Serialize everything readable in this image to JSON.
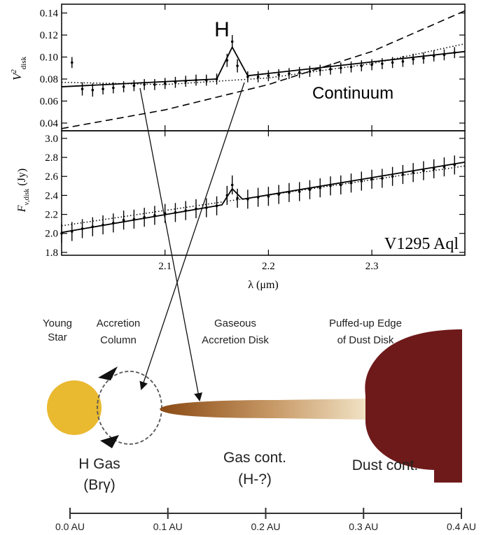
{
  "chart_data": [
    {
      "type": "line",
      "ylabel_main": "V",
      "ylabel_sup": "2",
      "ylabel_sub": "disk",
      "ylim": [
        0.033,
        0.148
      ],
      "xlim": [
        2.0,
        2.39
      ],
      "yticks": [
        "0.04",
        "0.06",
        "0.08",
        "0.10",
        "0.12",
        "0.14"
      ],
      "grid": false,
      "annotations": {
        "line_label": "H",
        "continuum_label": "Continuum"
      },
      "series": [
        {
          "style": "points-errorbars",
          "x": [
            2.01,
            2.02,
            2.03,
            2.04,
            2.05,
            2.06,
            2.07,
            2.08,
            2.09,
            2.1,
            2.11,
            2.12,
            2.13,
            2.14,
            2.15,
            2.16,
            2.165,
            2.17,
            2.18,
            2.19,
            2.2,
            2.21,
            2.22,
            2.23,
            2.24,
            2.25,
            2.26,
            2.27,
            2.28,
            2.29,
            2.3,
            2.31,
            2.32,
            2.33,
            2.34,
            2.35,
            2.36,
            2.37,
            2.38
          ],
          "y": [
            0.095,
            0.071,
            0.07,
            0.071,
            0.072,
            0.073,
            0.074,
            0.075,
            0.075,
            0.076,
            0.077,
            0.078,
            0.079,
            0.079,
            0.08,
            0.097,
            0.114,
            0.092,
            0.082,
            0.082,
            0.083,
            0.084,
            0.085,
            0.086,
            0.087,
            0.088,
            0.089,
            0.09,
            0.091,
            0.092,
            0.093,
            0.094,
            0.095,
            0.096,
            0.098,
            0.099,
            0.101,
            0.102,
            0.104
          ],
          "err": [
            0.005,
            0.006,
            0.006,
            0.005,
            0.005,
            0.005,
            0.005,
            0.005,
            0.005,
            0.005,
            0.005,
            0.005,
            0.005,
            0.005,
            0.005,
            0.006,
            0.006,
            0.006,
            0.005,
            0.005,
            0.005,
            0.005,
            0.005,
            0.005,
            0.005,
            0.005,
            0.005,
            0.005,
            0.005,
            0.005,
            0.005,
            0.005,
            0.005,
            0.005,
            0.005,
            0.005,
            0.005,
            0.005,
            0.005
          ]
        },
        {
          "style": "solid",
          "x": [
            2.0,
            2.15,
            2.165,
            2.18,
            2.39
          ],
          "y": [
            0.073,
            0.08,
            0.109,
            0.083,
            0.105
          ]
        },
        {
          "style": "dashed",
          "x": [
            2.0,
            2.1,
            2.2,
            2.3,
            2.39
          ],
          "y": [
            0.035,
            0.052,
            0.075,
            0.105,
            0.142
          ]
        },
        {
          "style": "dotted",
          "x": [
            2.0,
            2.1,
            2.2,
            2.3,
            2.39
          ],
          "y": [
            0.077,
            0.075,
            0.081,
            0.094,
            0.112
          ]
        }
      ]
    },
    {
      "type": "line",
      "ylabel_main": "F",
      "ylabel_sub": "ν,disk",
      "ylabel_rest": " (Jy)",
      "xlabel": "λ (μm)",
      "ylim": [
        1.77,
        3.08
      ],
      "xlim": [
        2.0,
        2.39
      ],
      "yticks": [
        "1.8",
        "2.0",
        "2.2",
        "2.4",
        "2.6",
        "2.8",
        "3.0"
      ],
      "xticks": [
        "2.1",
        "2.2",
        "2.3"
      ],
      "xtick_values": [
        2.1,
        2.2,
        2.3
      ],
      "grid": false,
      "annotations": {
        "object_label": "V1295 Aql"
      },
      "series": [
        {
          "style": "points-errorbars",
          "x": [
            2.0,
            2.01,
            2.02,
            2.03,
            2.04,
            2.05,
            2.06,
            2.07,
            2.08,
            2.09,
            2.1,
            2.11,
            2.12,
            2.13,
            2.14,
            2.15,
            2.16,
            2.165,
            2.17,
            2.18,
            2.19,
            2.2,
            2.21,
            2.22,
            2.23,
            2.24,
            2.25,
            2.26,
            2.27,
            2.28,
            2.29,
            2.3,
            2.31,
            2.32,
            2.33,
            2.34,
            2.35,
            2.36,
            2.37,
            2.38
          ],
          "y": [
            2.0,
            2.02,
            2.05,
            2.07,
            2.09,
            2.11,
            2.14,
            2.15,
            2.17,
            2.19,
            2.21,
            2.22,
            2.24,
            2.26,
            2.27,
            2.29,
            2.4,
            2.51,
            2.37,
            2.36,
            2.38,
            2.39,
            2.41,
            2.43,
            2.44,
            2.46,
            2.48,
            2.5,
            2.51,
            2.53,
            2.55,
            2.57,
            2.58,
            2.6,
            2.62,
            2.64,
            2.66,
            2.68,
            2.7,
            2.72
          ],
          "err": [
            0.1,
            0.1,
            0.1,
            0.1,
            0.1,
            0.1,
            0.1,
            0.1,
            0.1,
            0.1,
            0.1,
            0.1,
            0.1,
            0.1,
            0.1,
            0.1,
            0.1,
            0.1,
            0.1,
            0.1,
            0.1,
            0.1,
            0.1,
            0.1,
            0.1,
            0.1,
            0.1,
            0.1,
            0.1,
            0.1,
            0.1,
            0.1,
            0.1,
            0.1,
            0.1,
            0.1,
            0.1,
            0.1,
            0.1,
            0.1
          ]
        },
        {
          "style": "solid",
          "x": [
            2.0,
            2.155,
            2.165,
            2.175,
            2.39
          ],
          "y": [
            2.01,
            2.3,
            2.47,
            2.36,
            2.75
          ]
        },
        {
          "style": "dotted",
          "x": [
            2.0,
            2.39
          ],
          "y": [
            2.08,
            2.71
          ]
        }
      ]
    }
  ],
  "diagram": {
    "labels": {
      "young_star": [
        "Young",
        "Star"
      ],
      "accretion_column": [
        "Accretion",
        "Column"
      ],
      "gaseous_disk": [
        "Gaseous",
        "Accretion Disk"
      ],
      "puffed_edge": [
        "Puffed-up Edge",
        "of Dust Disk"
      ],
      "h_gas": [
        "H Gas",
        "(Brγ)"
      ],
      "gas_cont": [
        "Gas cont.",
        "(H-?)"
      ],
      "dust_cont": "Dust cont."
    },
    "au_scale": {
      "ticks": [
        "0.0 AU",
        "0.1 AU",
        "0.2 AU",
        "0.3 AU",
        "0.4 AU"
      ],
      "values": [
        0.0,
        0.1,
        0.2,
        0.3,
        0.4
      ]
    },
    "colors": {
      "star": "#e9b930",
      "disk_inner": "#8b4a14",
      "disk_outer": "#f1e2c4",
      "dust": "#6e1a1a"
    }
  }
}
